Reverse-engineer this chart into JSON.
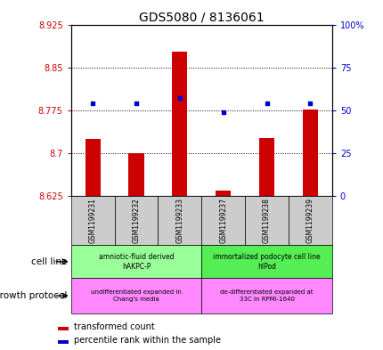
{
  "title": "GDS5080 / 8136061",
  "samples": [
    "GSM1199231",
    "GSM1199232",
    "GSM1199233",
    "GSM1199237",
    "GSM1199238",
    "GSM1199239"
  ],
  "transformed_counts": [
    8.725,
    8.7,
    8.878,
    8.635,
    8.726,
    8.776
  ],
  "percentile_ranks": [
    54,
    54,
    57,
    49,
    54,
    54
  ],
  "ylim_left": [
    8.625,
    8.925
  ],
  "ylim_right": [
    0,
    100
  ],
  "yticks_left": [
    8.625,
    8.7,
    8.775,
    8.85,
    8.925
  ],
  "yticks_right": [
    0,
    25,
    50,
    75,
    100
  ],
  "ytick_labels_left": [
    "8.625",
    "8.7",
    "8.775",
    "8.85",
    "8.925"
  ],
  "ytick_labels_right": [
    "0",
    "25",
    "50",
    "75",
    "100%"
  ],
  "bar_color": "#cc0000",
  "dot_color": "#0000cc",
  "bar_bottom": 8.625,
  "cell_line_groups": [
    {
      "label": "amniotic-fluid derived\nhAKPC-P",
      "start": 0,
      "end": 3,
      "color": "#99ff99"
    },
    {
      "label": "immortalized podocyte cell line\nhIPod",
      "start": 3,
      "end": 6,
      "color": "#55ee55"
    }
  ],
  "growth_protocol_groups": [
    {
      "label": "undifferentiated expanded in\nChang's media",
      "start": 0,
      "end": 3,
      "color": "#ff88ff"
    },
    {
      "label": "de-differentiated expanded at\n33C in RPMI-1640",
      "start": 3,
      "end": 6,
      "color": "#ff88ff"
    }
  ],
  "cell_line_label": "cell line",
  "growth_protocol_label": "growth protocol",
  "legend_bar_label": "transformed count",
  "legend_dot_label": "percentile rank within the sample",
  "tick_label_color_left": "#cc0000",
  "tick_label_color_right": "#0000cc",
  "sample_box_color": "#cccccc",
  "title_fontsize": 10
}
